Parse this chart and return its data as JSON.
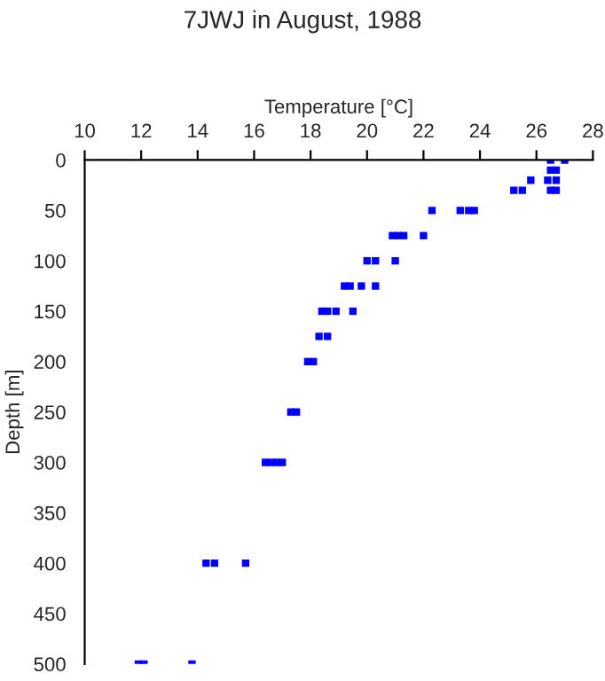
{
  "chart_data": {
    "type": "scatter",
    "title": "7JWJ in August, 1988",
    "xlabel": "Temperature [°C]",
    "ylabel": "Depth [m]",
    "series": [
      {
        "color": "#0000ff",
        "x": [
          26.5,
          27.0,
          26.5,
          26.7,
          25.8,
          26.4,
          26.7,
          25.2,
          25.5,
          26.5,
          26.7,
          22.3,
          23.3,
          23.6,
          23.8,
          20.9,
          21.1,
          21.3,
          22.0,
          20.0,
          20.3,
          21.0,
          19.2,
          19.4,
          19.8,
          20.3,
          18.4,
          18.6,
          18.9,
          19.5,
          18.3,
          18.6,
          17.9,
          18.1,
          17.3,
          17.5,
          16.4,
          16.6,
          16.8,
          17.0,
          14.3,
          14.6,
          15.7,
          11.9,
          12.1,
          13.8
        ],
        "values": [
          0,
          0,
          10,
          10,
          20,
          20,
          20,
          30,
          30,
          30,
          30,
          50,
          50,
          50,
          50,
          75,
          75,
          75,
          75,
          100,
          100,
          100,
          125,
          125,
          125,
          125,
          150,
          150,
          150,
          150,
          175,
          175,
          200,
          200,
          250,
          250,
          300,
          300,
          300,
          300,
          400,
          400,
          400,
          500,
          500,
          500
        ]
      }
    ],
    "xlim": [
      10,
      28
    ],
    "xticks": [
      10,
      12,
      14,
      16,
      18,
      20,
      22,
      24,
      26,
      28
    ],
    "ylim": [
      500,
      0
    ],
    "yticks": [
      0,
      50,
      100,
      150,
      200,
      250,
      300,
      350,
      400,
      450,
      500
    ],
    "marker": "square",
    "grid": false,
    "legend": false
  }
}
